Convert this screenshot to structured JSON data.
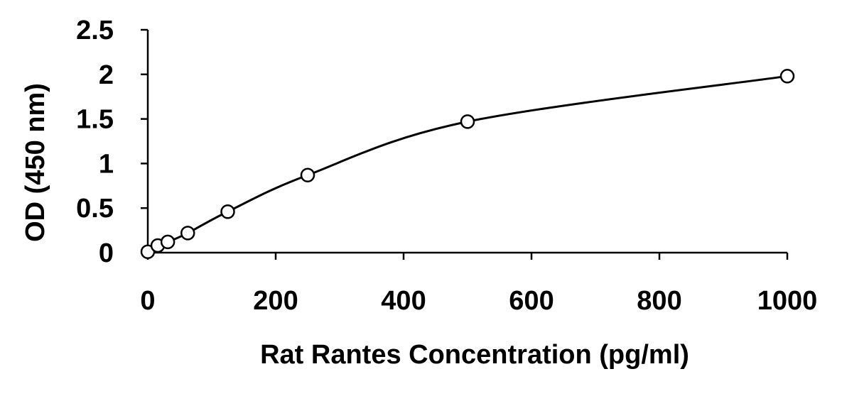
{
  "chart_data": {
    "type": "scatter",
    "title": "",
    "xlabel": "Rat Rantes Concentration (pg/ml)",
    "ylabel": "OD (450 nm)",
    "xlim": [
      0,
      1000
    ],
    "ylim": [
      0,
      2.5
    ],
    "x_ticks": [
      "0",
      "200",
      "400",
      "600",
      "800",
      "1000"
    ],
    "y_ticks": [
      "0",
      "0.5",
      "1",
      "1.5",
      "2",
      "2.5"
    ],
    "grid": false,
    "legend": "none",
    "series": [
      {
        "marker": "open-circle",
        "trendline": "smooth-curve",
        "points": [
          {
            "x": 0,
            "y": 0.01
          },
          {
            "x": 15.6,
            "y": 0.08
          },
          {
            "x": 31.25,
            "y": 0.12
          },
          {
            "x": 62.5,
            "y": 0.22
          },
          {
            "x": 125,
            "y": 0.46
          },
          {
            "x": 250,
            "y": 0.87
          },
          {
            "x": 500,
            "y": 1.47
          },
          {
            "x": 1000,
            "y": 1.98
          }
        ]
      }
    ],
    "colors": {
      "line": "#000000",
      "marker": "#000000",
      "axis": "#000000"
    }
  }
}
